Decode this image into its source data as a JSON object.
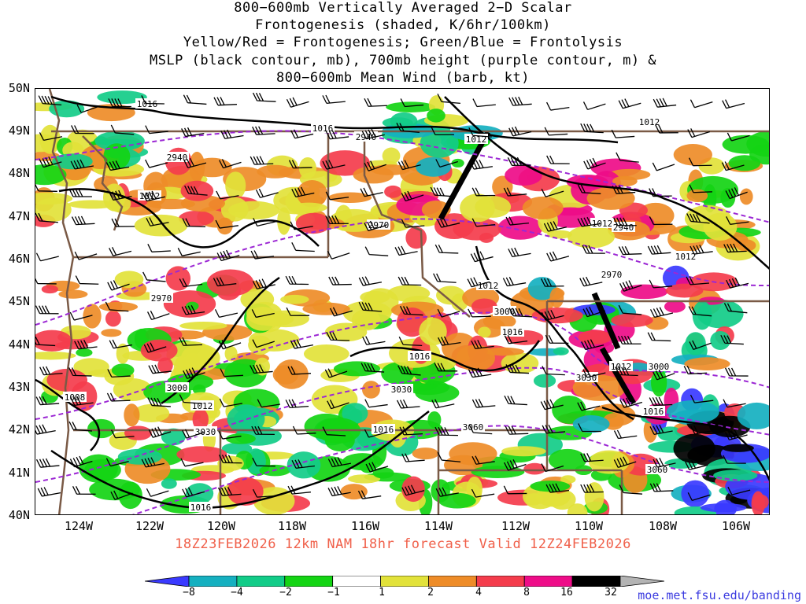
{
  "title": {
    "line1": "800−600mb Vertically Averaged 2−D Scalar",
    "line2": "Frontogenesis (shaded, K/6hr/100km)",
    "line3": "Yellow/Red = Frontogenesis;  Green/Blue = Frontolysis",
    "line4": "MSLP (black contour, mb), 700mb height (purple contour, m) &",
    "line5": "800−600mb Mean Wind (barb, kt)"
  },
  "valid_text": "18Z23FEB2026 12km NAM 18hr forecast Valid 12Z24FEB2026",
  "credit": "moe.met.fsu.edu/banding",
  "lat_labels": [
    "50N",
    "49N",
    "48N",
    "47N",
    "46N",
    "45N",
    "44N",
    "43N",
    "42N",
    "41N",
    "40N"
  ],
  "lon_labels": [
    "124W",
    "122W",
    "120W",
    "118W",
    "116W",
    "114W",
    "112W",
    "110W",
    "108W",
    "106W"
  ],
  "mslp_labels": [
    "1016",
    "1016",
    "1012",
    "1012",
    "1012",
    "1012",
    "1012",
    "1012",
    "1016",
    "1016",
    "1012",
    "1012",
    "1008",
    "1016",
    "1016",
    "1016"
  ],
  "height_labels": [
    "2940",
    "2940",
    "2940",
    "2970",
    "2970",
    "2970",
    "3000",
    "3000",
    "3000",
    "3030",
    "3030",
    "3030",
    "3060",
    "3060"
  ],
  "colorbar": {
    "labels": [
      "−8",
      "−4",
      "−2",
      "−1",
      "1",
      "2",
      "4",
      "8",
      "16",
      "32"
    ],
    "colors": [
      "#3a3aff",
      "#15b0c0",
      "#12cc88",
      "#14d414",
      "#ffffff",
      "#e2e23a",
      "#ee8c28",
      "#f43c4c",
      "#ee0c88",
      "#000000",
      "#b4b4b4"
    ]
  },
  "colors": {
    "mslp": "#000000",
    "height": "#9c28d4",
    "borders": "#7a5a46",
    "valid_text": "#f0604a",
    "credit": "#3a3ae0"
  }
}
